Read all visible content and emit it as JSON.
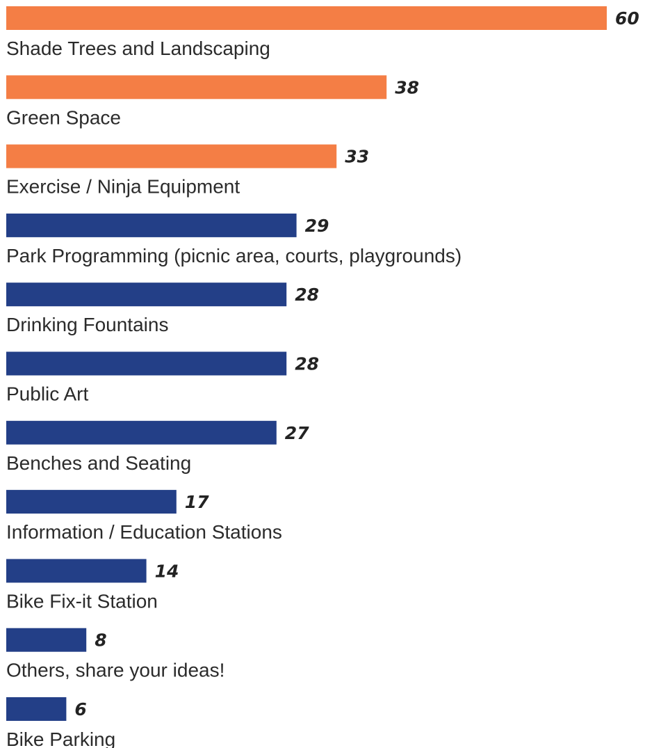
{
  "chart_data": {
    "type": "bar",
    "orientation": "horizontal",
    "categories": [
      "Shade Trees and Landscaping",
      "Green Space",
      "Exercise / Ninja Equipment",
      "Park Programming (picnic area, courts, playgrounds)",
      "Drinking Fountains",
      "Public Art",
      "Benches and Seating",
      "Information / Education Stations",
      "Bike Fix-it Station",
      "Others, share your ideas!",
      "Bike Parking"
    ],
    "values": [
      60,
      38,
      33,
      29,
      28,
      28,
      27,
      17,
      14,
      8,
      6
    ],
    "value_labels": [
      "60",
      "38",
      "33",
      "29",
      "28",
      "28",
      "27",
      "17",
      "14",
      "8",
      "6"
    ],
    "highlight_count": 3,
    "colors": {
      "highlight": "#f47e45",
      "default": "#233f87"
    },
    "title": "",
    "xlabel": "",
    "ylabel": "",
    "xlim": [
      0,
      60
    ],
    "grid": false,
    "legend": "none"
  }
}
